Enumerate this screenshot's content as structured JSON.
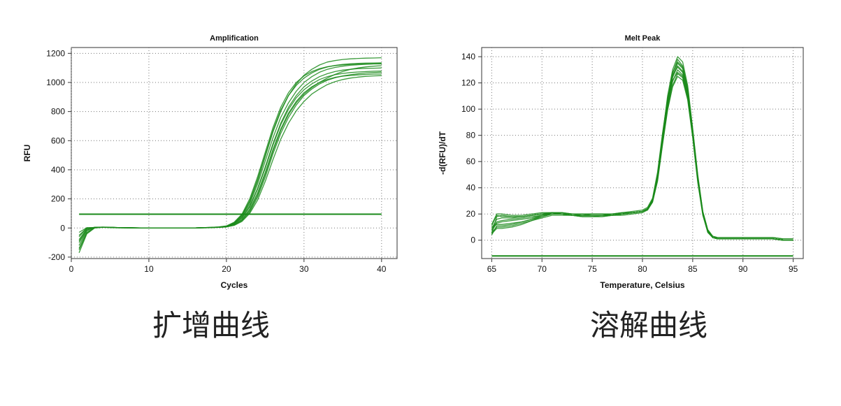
{
  "charts": [
    {
      "id": "amp",
      "caption": "扩增曲线",
      "chart_data": {
        "type": "line",
        "title": "Amplification",
        "xlabel": "Cycles",
        "ylabel": "RFU",
        "xlim": [
          0,
          42
        ],
        "ylim": [
          -210,
          1240
        ],
        "xticks": [
          0,
          10,
          20,
          30,
          40
        ],
        "yticks": [
          -200,
          0,
          200,
          400,
          600,
          800,
          1000,
          1200
        ],
        "grid": true,
        "color": "#1a8a1a",
        "threshold": 95,
        "x": [
          1,
          2,
          3,
          4,
          5,
          6,
          7,
          8,
          9,
          10,
          11,
          12,
          13,
          14,
          15,
          16,
          17,
          18,
          19,
          20,
          21,
          22,
          23,
          24,
          25,
          26,
          27,
          28,
          29,
          30,
          31,
          32,
          33,
          34,
          35,
          36,
          37,
          38,
          39,
          40
        ],
        "series": [
          {
            "values": [
              -170,
              -40,
              0,
              5,
              5,
              2,
              3,
              2,
              0,
              0,
              1,
              0,
              1,
              0,
              0,
              1,
              2,
              3,
              5,
              10,
              30,
              70,
              150,
              270,
              420,
              580,
              720,
              830,
              910,
              970,
              1010,
              1040,
              1060,
              1075,
              1085,
              1090,
              1095,
              1097,
              1098,
              1100
            ]
          },
          {
            "values": [
              -120,
              -20,
              5,
              5,
              3,
              1,
              2,
              1,
              0,
              0,
              0,
              0,
              0,
              0,
              0,
              1,
              2,
              3,
              6,
              12,
              35,
              85,
              180,
              320,
              490,
              660,
              800,
              910,
              990,
              1050,
              1090,
              1120,
              1140,
              1150,
              1158,
              1162,
              1165,
              1167,
              1168,
              1170
            ]
          },
          {
            "values": [
              -90,
              -10,
              2,
              4,
              4,
              2,
              2,
              1,
              0,
              0,
              0,
              1,
              0,
              0,
              0,
              1,
              2,
              3,
              5,
              9,
              25,
              60,
              130,
              240,
              380,
              540,
              680,
              790,
              870,
              930,
              970,
              1000,
              1020,
              1035,
              1043,
              1048,
              1052,
              1055,
              1057,
              1058
            ]
          },
          {
            "values": [
              -140,
              -30,
              3,
              6,
              5,
              3,
              2,
              2,
              1,
              0,
              0,
              0,
              0,
              0,
              1,
              1,
              2,
              4,
              6,
              11,
              32,
              78,
              165,
              300,
              460,
              620,
              760,
              860,
              940,
              1000,
              1040,
              1070,
              1090,
              1103,
              1112,
              1118,
              1122,
              1125,
              1127,
              1128
            ]
          },
          {
            "values": [
              -60,
              0,
              4,
              5,
              3,
              2,
              1,
              1,
              0,
              0,
              0,
              0,
              0,
              0,
              0,
              1,
              2,
              3,
              5,
              8,
              20,
              50,
              110,
              210,
              350,
              510,
              650,
              760,
              845,
              910,
              955,
              990,
              1015,
              1032,
              1045,
              1053,
              1060,
              1065,
              1068,
              1070
            ]
          },
          {
            "values": [
              -100,
              -15,
              5,
              6,
              4,
              2,
              2,
              1,
              1,
              0,
              0,
              0,
              0,
              0,
              0,
              1,
              2,
              4,
              7,
              14,
              40,
              95,
              200,
              350,
              520,
              690,
              830,
              930,
              1000,
              1045,
              1075,
              1095,
              1108,
              1116,
              1121,
              1124,
              1126,
              1127,
              1128,
              1128
            ]
          },
          {
            "values": [
              -30,
              2,
              3,
              4,
              3,
              2,
              1,
              1,
              0,
              0,
              0,
              0,
              0,
              0,
              0,
              1,
              1,
              3,
              4,
              8,
              22,
              55,
              120,
              225,
              370,
              530,
              670,
              780,
              860,
              920,
              965,
              1000,
              1030,
              1055,
              1075,
              1090,
              1100,
              1107,
              1112,
              1115
            ]
          },
          {
            "values": [
              -80,
              -5,
              4,
              5,
              4,
              2,
              2,
              1,
              0,
              0,
              0,
              0,
              0,
              0,
              0,
              1,
              2,
              3,
              6,
              10,
              28,
              70,
              145,
              265,
              410,
              570,
              710,
              815,
              895,
              950,
              990,
              1020,
              1040,
              1053,
              1062,
              1068,
              1072,
              1075,
              1077,
              1078
            ]
          },
          {
            "values": [
              -150,
              -35,
              2,
              6,
              5,
              3,
              2,
              1,
              0,
              0,
              0,
              0,
              0,
              0,
              0,
              1,
              2,
              4,
              7,
              13,
              36,
              88,
              185,
              330,
              500,
              670,
              810,
              910,
              980,
              1030,
              1065,
              1090,
              1106,
              1117,
              1124,
              1128,
              1131,
              1133,
              1134,
              1135
            ]
          },
          {
            "values": [
              -50,
              0,
              3,
              5,
              4,
              2,
              1,
              1,
              0,
              0,
              0,
              0,
              0,
              0,
              0,
              1,
              1,
              2,
              4,
              7,
              18,
              45,
              100,
              190,
              320,
              470,
              610,
              720,
              805,
              870,
              920,
              955,
              985,
              1005,
              1020,
              1030,
              1037,
              1042,
              1045,
              1047
            ]
          }
        ]
      }
    },
    {
      "id": "melt",
      "caption": "溶解曲线",
      "chart_data": {
        "type": "line",
        "title": "Melt Peak",
        "xlabel": "Temperature, Celsius",
        "ylabel": "-d(RFU)/dT",
        "xlim": [
          64,
          96
        ],
        "ylim": [
          -14,
          147
        ],
        "xticks": [
          65,
          70,
          75,
          80,
          85,
          90,
          95
        ],
        "yticks": [
          0,
          20,
          40,
          60,
          80,
          100,
          120,
          140
        ],
        "grid": true,
        "color": "#1a8a1a",
        "threshold": -12,
        "x": [
          65,
          65.5,
          66,
          67,
          68,
          69,
          70,
          71,
          72,
          73,
          74,
          75,
          76,
          77,
          78,
          79,
          80,
          80.5,
          81,
          81.5,
          82,
          82.5,
          83,
          83.5,
          84,
          84.5,
          85,
          85.5,
          86,
          86.5,
          87,
          87.5,
          88,
          89,
          90,
          91,
          92,
          93,
          94,
          95
        ],
        "series": [
          {
            "values": [
              5,
              18,
              19,
              18,
              18,
              19,
              20,
              21,
              20,
              19,
              19,
              20,
              20,
              19,
              20,
              21,
              22,
              24,
              30,
              50,
              80,
              110,
              130,
              140,
              136,
              118,
              85,
              50,
              22,
              8,
              3,
              2,
              2,
              2,
              2,
              2,
              2,
              2,
              1,
              1
            ]
          },
          {
            "values": [
              8,
              14,
              15,
              16,
              17,
              18,
              19,
              20,
              20,
              19,
              19,
              19,
              19,
              19,
              20,
              21,
              22,
              24,
              30,
              48,
              78,
              105,
              125,
              135,
              131,
              114,
              83,
              48,
              21,
              7,
              2,
              1,
              1,
              1,
              1,
              1,
              1,
              1,
              0,
              0
            ]
          },
          {
            "values": [
              10,
              12,
              12,
              13,
              14,
              16,
              18,
              20,
              20,
              19,
              18,
              18,
              18,
              19,
              20,
              21,
              22,
              24,
              30,
              47,
              76,
              102,
              121,
              130,
              126,
              110,
              80,
              46,
              20,
              7,
              2,
              1,
              1,
              1,
              1,
              1,
              1,
              1,
              0,
              0
            ]
          },
          {
            "values": [
              12,
              20,
              20,
              19,
              19,
              20,
              21,
              21,
              20,
              20,
              20,
              20,
              20,
              20,
              21,
              22,
              23,
              25,
              32,
              52,
              82,
              108,
              126,
              132,
              128,
              112,
              81,
              47,
              21,
              7,
              2,
              1,
              1,
              1,
              1,
              1,
              1,
              1,
              0,
              0
            ]
          },
          {
            "values": [
              6,
              10,
              10,
              11,
              13,
              15,
              17,
              19,
              19,
              19,
              18,
              18,
              19,
              19,
              20,
              21,
              22,
              23,
              29,
              46,
              74,
              100,
              118,
              127,
              124,
              108,
              79,
              45,
              20,
              6,
              2,
              1,
              1,
              1,
              1,
              1,
              1,
              1,
              0,
              0
            ]
          },
          {
            "values": [
              9,
              16,
              17,
              17,
              18,
              19,
              20,
              20,
              20,
              19,
              19,
              19,
              19,
              20,
              20,
              21,
              22,
              24,
              31,
              49,
              79,
              106,
              127,
              138,
              133,
              116,
              84,
              49,
              22,
              8,
              3,
              2,
              2,
              2,
              2,
              2,
              2,
              2,
              1,
              1
            ]
          },
          {
            "values": [
              4,
              11,
              11,
              12,
              14,
              16,
              19,
              21,
              21,
              20,
              19,
              19,
              19,
              19,
              20,
              21,
              22,
              24,
              30,
              48,
              77,
              103,
              122,
              128,
              125,
              109,
              80,
              46,
              20,
              7,
              2,
              2,
              2,
              2,
              2,
              2,
              2,
              2,
              1,
              1
            ]
          },
          {
            "values": [
              7,
              13,
              14,
              15,
              16,
              17,
              19,
              20,
              20,
              19,
              19,
              19,
              19,
              19,
              20,
              21,
              22,
              24,
              30,
              48,
              78,
              104,
              124,
              133,
              129,
              112,
              82,
              47,
              21,
              7,
              2,
              1,
              1,
              1,
              1,
              1,
              1,
              1,
              0,
              0
            ]
          },
          {
            "values": [
              11,
              19,
              18,
              18,
              18,
              19,
              20,
              21,
              21,
              20,
              20,
              20,
              20,
              20,
              21,
              21,
              22,
              24,
              31,
              50,
              81,
              107,
              128,
              136,
              132,
              115,
              84,
              48,
              21,
              7,
              2,
              1,
              1,
              1,
              1,
              1,
              1,
              1,
              0,
              0
            ]
          },
          {
            "values": [
              5,
              9,
              9,
              10,
              12,
              15,
              18,
              20,
              20,
              19,
              18,
              18,
              18,
              19,
              19,
              20,
              21,
              23,
              29,
              45,
              73,
              99,
              117,
              125,
              122,
              107,
              78,
              44,
              19,
              6,
              2,
              1,
              1,
              1,
              1,
              1,
              1,
              1,
              0,
              0
            ]
          }
        ]
      }
    }
  ]
}
